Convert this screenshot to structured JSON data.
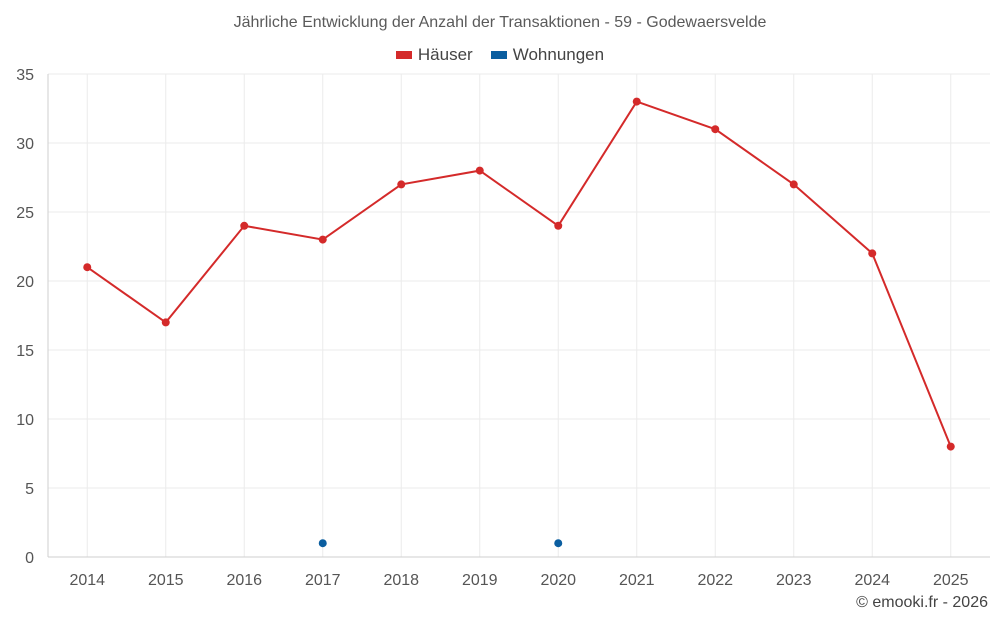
{
  "chart_data": {
    "type": "line",
    "title": "Jährliche Entwicklung der Anzahl der Transaktionen - 59 - Godewaersvelde",
    "categories": [
      "2014",
      "2015",
      "2016",
      "2017",
      "2018",
      "2019",
      "2020",
      "2021",
      "2022",
      "2023",
      "2024",
      "2025"
    ],
    "ylim": [
      0,
      35
    ],
    "yticks": [
      0,
      5,
      10,
      15,
      20,
      25,
      30,
      35
    ],
    "grid": true,
    "legend_position": "top",
    "series": [
      {
        "name": "Häuser",
        "color": "#d42a2a",
        "values": [
          21,
          17,
          24,
          23,
          27,
          28,
          24,
          33,
          31,
          27,
          22,
          8
        ]
      },
      {
        "name": "Wohnungen",
        "color": "#0b5ea0",
        "values": [
          null,
          null,
          null,
          1,
          null,
          null,
          1,
          null,
          null,
          null,
          null,
          null
        ]
      }
    ]
  },
  "credit": "© emooki.fr - 2026"
}
